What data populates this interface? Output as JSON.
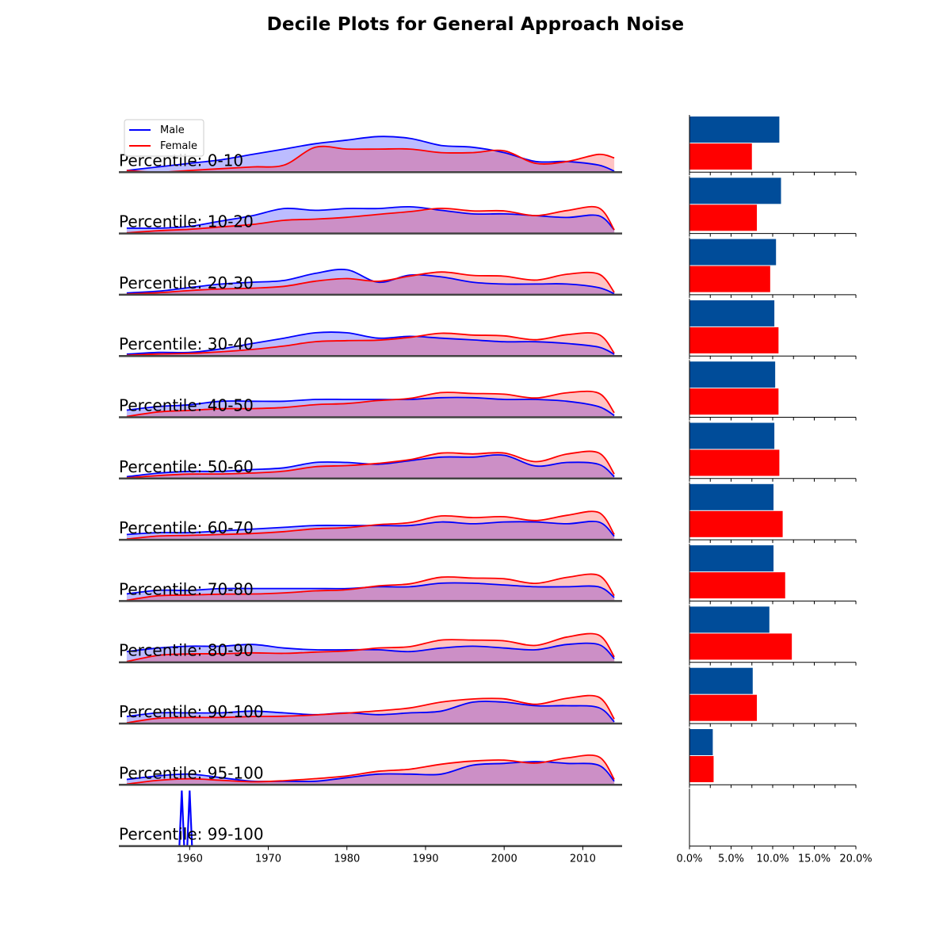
{
  "title": "Decile Plots for General Approach Noise",
  "colors": {
    "male_line": "#0000ff",
    "male_fill": "#b8b8ff",
    "female_line": "#ff0000",
    "female_fill": "#ffbcbc",
    "overlap_fill": "#cc8fc6",
    "male_bar": "#004c99",
    "female_bar": "#ff0000",
    "baseline": "#444444"
  },
  "chart_data": [
    {
      "type": "area",
      "title": "",
      "xlim": [
        1951,
        2015
      ],
      "x_ticks": [
        "1960",
        "1970",
        "1980",
        "1990",
        "2000",
        "2010"
      ],
      "legend": {
        "placement": "top-left",
        "entries": [
          "Male",
          "Female"
        ]
      },
      "x": [
        1952,
        1956,
        1960,
        1964,
        1968,
        1972,
        1976,
        1980,
        1984,
        1988,
        1992,
        1996,
        2000,
        2004,
        2008,
        2012,
        2014
      ],
      "panels": [
        {
          "label": "Percentile: 0-10",
          "male": [
            0.05,
            0.15,
            0.25,
            0.35,
            0.5,
            0.65,
            0.8,
            0.9,
            1.0,
            0.95,
            0.75,
            0.7,
            0.55,
            0.3,
            0.3,
            0.2,
            0.03
          ],
          "female": [
            0.05,
            0.0,
            0.05,
            0.1,
            0.15,
            0.2,
            0.7,
            0.65,
            0.65,
            0.65,
            0.55,
            0.55,
            0.6,
            0.25,
            0.3,
            0.5,
            0.4
          ]
        },
        {
          "label": "Percentile: 10-20",
          "male": [
            0.15,
            0.15,
            0.2,
            0.35,
            0.5,
            0.7,
            0.65,
            0.7,
            0.7,
            0.75,
            0.65,
            0.55,
            0.55,
            0.5,
            0.45,
            0.5,
            0.1
          ]
        },
        {
          "label": "Percentile: 20-30",
          "male": [
            0.05,
            0.1,
            0.2,
            0.3,
            0.35,
            0.4,
            0.6,
            0.7,
            0.35,
            0.55,
            0.5,
            0.35,
            0.3,
            0.3,
            0.3,
            0.2,
            0.03
          ]
        },
        {
          "label": "Percentile: 30-40",
          "male": [
            0.05,
            0.1,
            0.1,
            0.2,
            0.35,
            0.5,
            0.65,
            0.65,
            0.5,
            0.55,
            0.5,
            0.45,
            0.4,
            0.4,
            0.35,
            0.25,
            0.05
          ]
        },
        {
          "label": "Percentile: 40-50",
          "male": [
            0.2,
            0.3,
            0.35,
            0.45,
            0.45,
            0.45,
            0.5,
            0.5,
            0.5,
            0.5,
            0.55,
            0.55,
            0.5,
            0.5,
            0.45,
            0.3,
            0.05
          ]
        },
        {
          "label": "Percentile: 50-60",
          "male": [
            0.05,
            0.15,
            0.2,
            0.2,
            0.25,
            0.3,
            0.45,
            0.45,
            0.4,
            0.5,
            0.6,
            0.6,
            0.65,
            0.35,
            0.45,
            0.4,
            0.05
          ]
        },
        {
          "label": "Percentile: 60-70",
          "male": [
            0.15,
            0.2,
            0.2,
            0.25,
            0.3,
            0.35,
            0.4,
            0.4,
            0.4,
            0.4,
            0.5,
            0.45,
            0.5,
            0.5,
            0.45,
            0.5,
            0.1
          ]
        },
        {
          "label": "Percentile: 70-80",
          "male": [
            0.2,
            0.3,
            0.3,
            0.35,
            0.35,
            0.35,
            0.35,
            0.35,
            0.4,
            0.4,
            0.5,
            0.5,
            0.45,
            0.4,
            0.4,
            0.4,
            0.1
          ]
        },
        {
          "label": "Percentile: 80-90",
          "male": [
            0.3,
            0.4,
            0.45,
            0.45,
            0.5,
            0.4,
            0.35,
            0.35,
            0.35,
            0.3,
            0.4,
            0.45,
            0.4,
            0.35,
            0.5,
            0.5,
            0.1
          ]
        },
        {
          "label": "Percentile: 90-100",
          "male": [
            0.2,
            0.3,
            0.3,
            0.3,
            0.35,
            0.3,
            0.25,
            0.3,
            0.25,
            0.3,
            0.35,
            0.6,
            0.6,
            0.5,
            0.5,
            0.45,
            0.05
          ]
        },
        {
          "label": "Percentile: 95-100",
          "male": [
            0.15,
            0.25,
            0.3,
            0.2,
            0.1,
            0.1,
            0.1,
            0.2,
            0.3,
            0.3,
            0.3,
            0.55,
            0.6,
            0.65,
            0.6,
            0.55,
            0.1
          ]
        },
        {
          "label": "Percentile: 99-100",
          "male_spikes": [
            1959,
            1960
          ]
        }
      ]
    },
    {
      "type": "bar",
      "orientation": "horizontal",
      "xlim": [
        0,
        20
      ],
      "x_ticks": [
        "0.0%",
        "5.0%",
        "10.0%",
        "15.0%",
        "20.0%"
      ],
      "categories": [
        "0-10",
        "10-20",
        "20-30",
        "30-40",
        "40-50",
        "50-60",
        "60-70",
        "70-80",
        "80-90",
        "90-100",
        "95-100",
        "99-100"
      ],
      "series": [
        {
          "name": "Male",
          "values": [
            10.8,
            11.0,
            10.4,
            10.2,
            10.3,
            10.2,
            10.1,
            10.1,
            9.6,
            7.6,
            2.8,
            0
          ]
        },
        {
          "name": "Female",
          "values": [
            7.5,
            8.1,
            9.7,
            10.7,
            10.7,
            10.8,
            11.2,
            11.5,
            12.3,
            8.1,
            2.9,
            0
          ]
        }
      ]
    }
  ]
}
